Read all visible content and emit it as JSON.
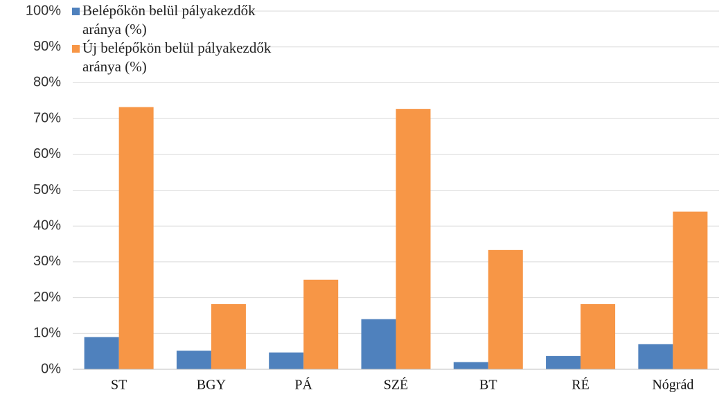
{
  "chart_data": {
    "type": "bar",
    "categories": [
      "ST",
      "BGY",
      "PÁ",
      "SZÉ",
      "BT",
      "RÉ",
      "Nógrád"
    ],
    "series": [
      {
        "name": "Belépőkön belül pályakezdők aránya (%)",
        "color": "#4f81bd",
        "values": [
          9,
          5.2,
          4.7,
          14,
          2,
          3.7,
          7
        ]
      },
      {
        "name": "Új belépőkön belül pályakezdők aránya (%)",
        "color": "#f79646",
        "values": [
          73.2,
          18.2,
          25,
          72.7,
          33.3,
          18.2,
          44
        ]
      }
    ],
    "ylim": [
      0,
      100
    ],
    "yticks": [
      {
        "value": 0,
        "label": "0%"
      },
      {
        "value": 10,
        "label": "10%"
      },
      {
        "value": 20,
        "label": "20%"
      },
      {
        "value": 30,
        "label": "30%"
      },
      {
        "value": 40,
        "label": "40%"
      },
      {
        "value": 50,
        "label": "50%"
      },
      {
        "value": 60,
        "label": "60%"
      },
      {
        "value": 70,
        "label": "70%"
      },
      {
        "value": 80,
        "label": "80%"
      },
      {
        "value": 90,
        "label": "90%"
      },
      {
        "value": 100,
        "label": "100%"
      }
    ],
    "grid": true,
    "legend": "top-left"
  }
}
